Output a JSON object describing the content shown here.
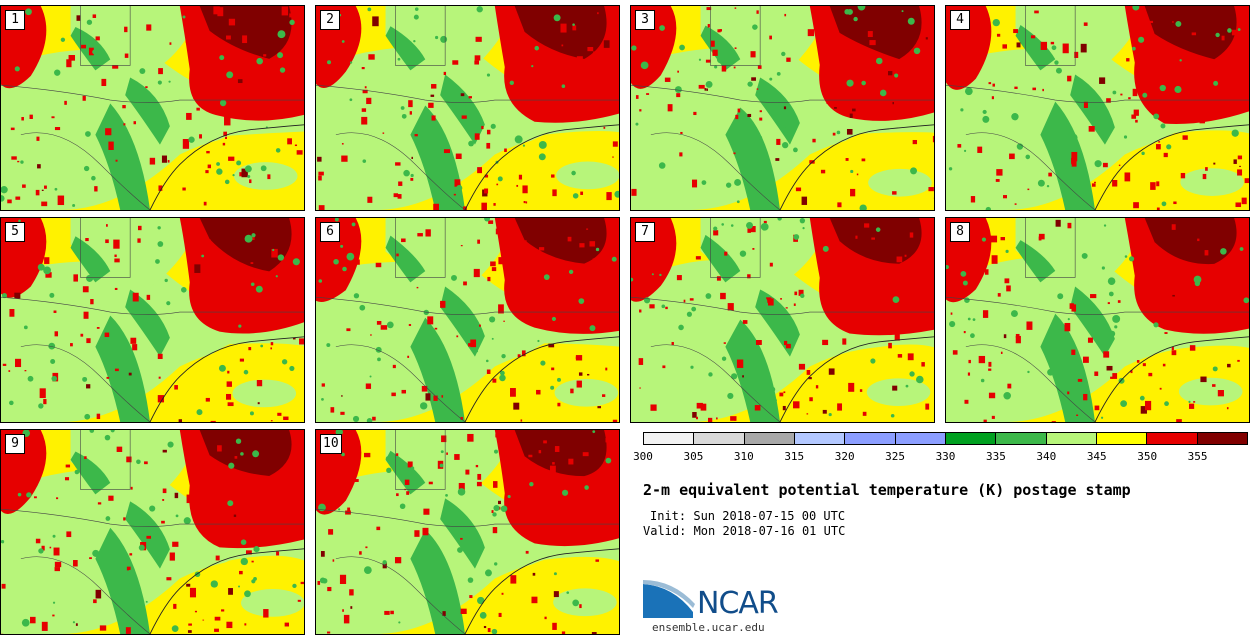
{
  "panels": [
    {
      "label": "1"
    },
    {
      "label": "2"
    },
    {
      "label": "3"
    },
    {
      "label": "4"
    },
    {
      "label": "5"
    },
    {
      "label": "6"
    },
    {
      "label": "7"
    },
    {
      "label": "8"
    },
    {
      "label": "9"
    },
    {
      "label": "10"
    }
  ],
  "colorbar": {
    "colors": [
      "#f2f2f2",
      "#d9d9d9",
      "#a8a8a8",
      "#b3c8ff",
      "#8c9eff",
      "#8c9eff",
      "#00a020",
      "#3cb84a",
      "#b7f57a",
      "#ffff00",
      "#e60000",
      "#800000"
    ],
    "ticks": [
      "300",
      "305",
      "310",
      "315",
      "320",
      "325",
      "330",
      "335",
      "340",
      "345",
      "350",
      "355"
    ]
  },
  "title": "2-m equivalent potential temperature (K) postage stamp",
  "init": "Init: Sun 2018-07-15 00 UTC",
  "valid": "Valid: Mon 2018-07-16 01 UTC",
  "logo": {
    "text": "NCAR",
    "color": "#114d8a"
  },
  "site": "ensemble.ucar.edu"
}
